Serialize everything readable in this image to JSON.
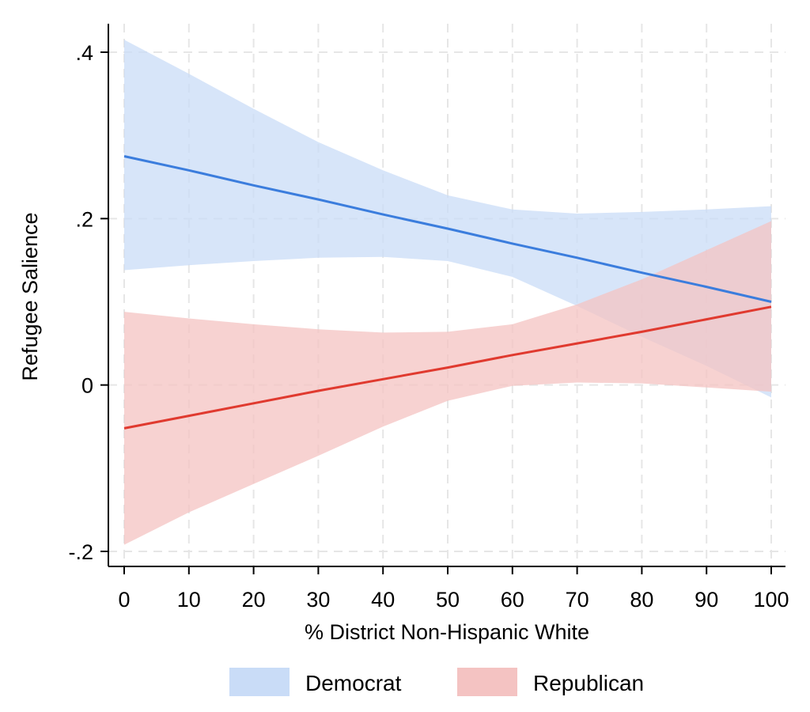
{
  "chart_data": {
    "type": "line",
    "title": "",
    "xlabel": "% District Non-Hispanic White",
    "ylabel": "Refugee Salience",
    "xlim": [
      0,
      100
    ],
    "ylim": [
      -0.2,
      0.4
    ],
    "x_ticks": [
      0,
      10,
      20,
      30,
      40,
      50,
      60,
      70,
      80,
      90,
      100
    ],
    "x_tick_labels": [
      "0",
      "10",
      "20",
      "30",
      "40",
      "50",
      "60",
      "70",
      "80",
      "90",
      "100"
    ],
    "y_ticks": [
      -0.2,
      0,
      0.2,
      0.4
    ],
    "y_tick_labels": [
      "-.2",
      "0",
      ".2",
      ".4"
    ],
    "grid": true,
    "legend_position": "bottom",
    "series": [
      {
        "name": "Democrat",
        "line_color": "#3b7ddd",
        "band_color": "#c9dcf7",
        "x": [
          0,
          10,
          20,
          30,
          40,
          50,
          60,
          70,
          80,
          90,
          100
        ],
        "estimate": [
          0.275,
          0.258,
          0.24,
          0.223,
          0.205,
          0.188,
          0.17,
          0.153,
          0.135,
          0.118,
          0.1
        ],
        "lower": [
          0.138,
          0.144,
          0.149,
          0.153,
          0.154,
          0.149,
          0.13,
          0.095,
          0.058,
          0.023,
          -0.015
        ],
        "upper": [
          0.415,
          0.374,
          0.332,
          0.292,
          0.258,
          0.228,
          0.211,
          0.206,
          0.208,
          0.211,
          0.215
        ]
      },
      {
        "name": "Republican",
        "line_color": "#e03a2f",
        "band_color": "#f4c3c2",
        "x": [
          0,
          10,
          20,
          30,
          40,
          50,
          60,
          70,
          80,
          90,
          100
        ],
        "estimate": [
          -0.052,
          -0.037,
          -0.022,
          -0.007,
          0.007,
          0.021,
          0.036,
          0.05,
          0.064,
          0.079,
          0.094
        ],
        "lower": [
          -0.192,
          -0.153,
          -0.119,
          -0.085,
          -0.05,
          -0.019,
          -0.001,
          0.003,
          0.002,
          -0.003,
          -0.008
        ],
        "upper": [
          0.088,
          0.08,
          0.073,
          0.067,
          0.063,
          0.064,
          0.073,
          0.097,
          0.127,
          0.162,
          0.197
        ]
      }
    ]
  }
}
